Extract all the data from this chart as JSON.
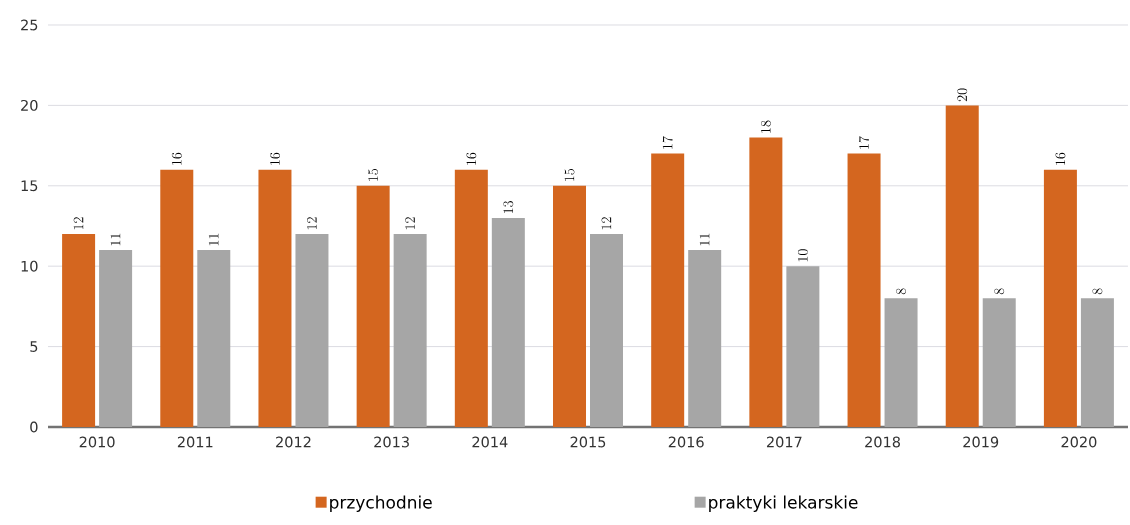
{
  "chart_data": {
    "type": "bar",
    "categories": [
      "2010",
      "2011",
      "2012",
      "2013",
      "2014",
      "2015",
      "2016",
      "2017",
      "2018",
      "2019",
      "2020"
    ],
    "series": [
      {
        "name": "przychodnie",
        "color": "#d4661f",
        "values": [
          12,
          16,
          16,
          15,
          16,
          15,
          17,
          18,
          17,
          20,
          16
        ]
      },
      {
        "name": "praktyki lekarskie",
        "color": "#a6a6a6",
        "values": [
          11,
          11,
          12,
          12,
          13,
          12,
          11,
          10,
          8,
          8,
          8
        ]
      }
    ],
    "ylim": [
      0,
      25
    ],
    "yticks": [
      0,
      5,
      10,
      15,
      20,
      25
    ],
    "grid": "y",
    "legend": "bottom",
    "data_labels": true
  }
}
